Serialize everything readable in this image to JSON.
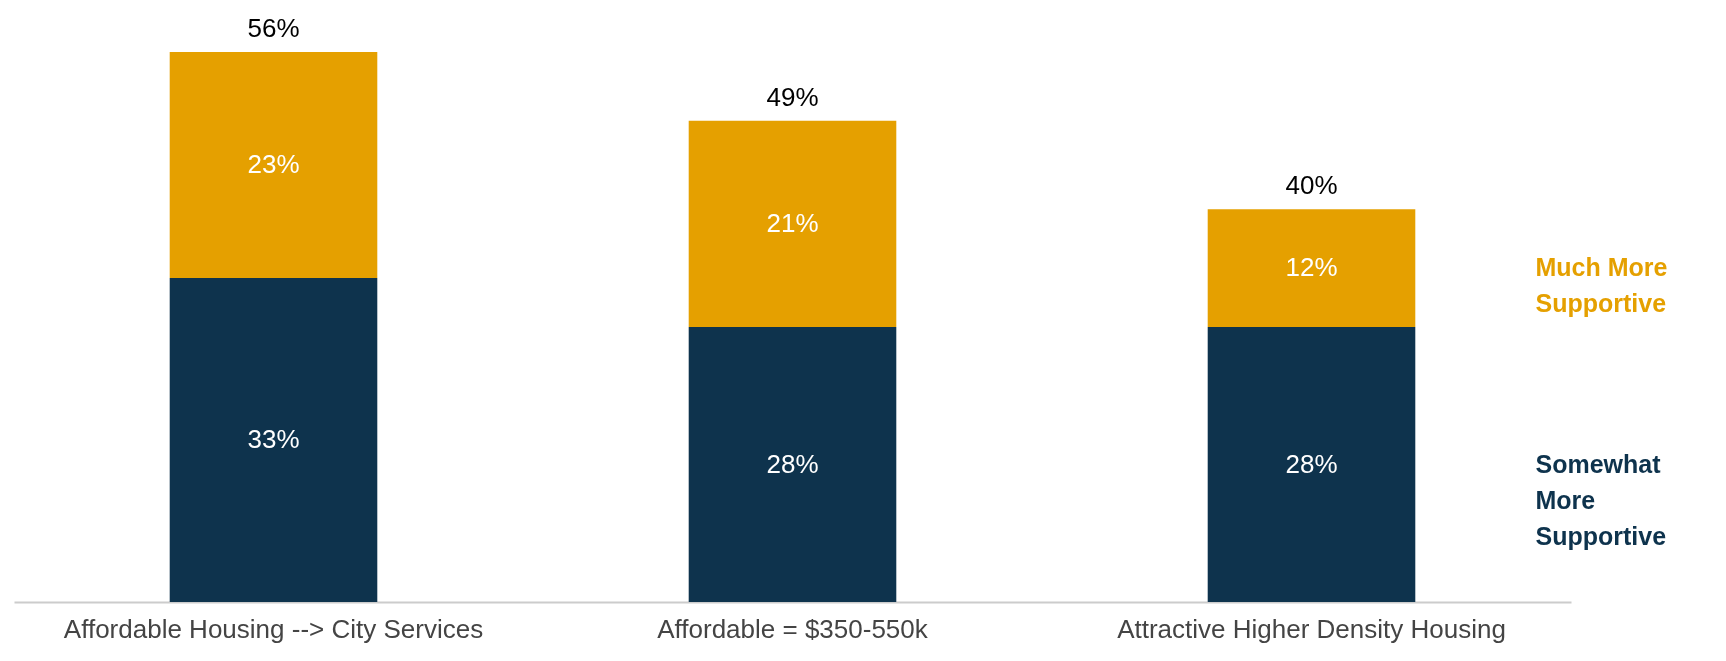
{
  "chart_data": {
    "type": "bar",
    "stacked": true,
    "categories": [
      "Affordable Housing --> City Services",
      "Affordable = $350-550k",
      "Attractive Higher Density Housing"
    ],
    "series": [
      {
        "name": "Somewhat More Supportive",
        "color": "#0e334d",
        "values": [
          33,
          28,
          28
        ],
        "value_labels": [
          "33%",
          "28%",
          "28%"
        ]
      },
      {
        "name": "Much More Supportive",
        "color": "#e5a000",
        "values": [
          23,
          21,
          12
        ],
        "value_labels": [
          "23%",
          "21%",
          "12%"
        ]
      }
    ],
    "totals": [
      "56%",
      "49%",
      "40%"
    ],
    "legend": "right"
  }
}
